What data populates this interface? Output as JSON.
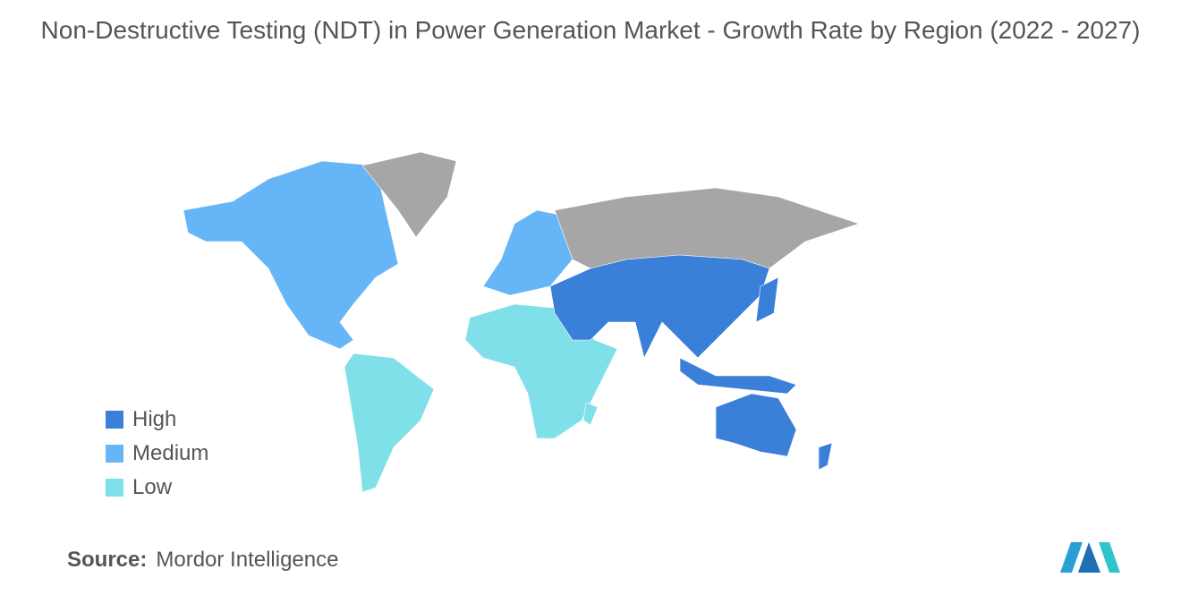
{
  "title": "Non-Destructive Testing (NDT) in Power Generation Market - Growth Rate by Region (2022 - 2027)",
  "legend": [
    {
      "label": "High",
      "color": "#3a7fd8"
    },
    {
      "label": "Medium",
      "color": "#66b6f7"
    },
    {
      "label": "Low",
      "color": "#80e0ea"
    }
  ],
  "source": {
    "label": "Source:",
    "text": "Mordor Intelligence"
  }
}
